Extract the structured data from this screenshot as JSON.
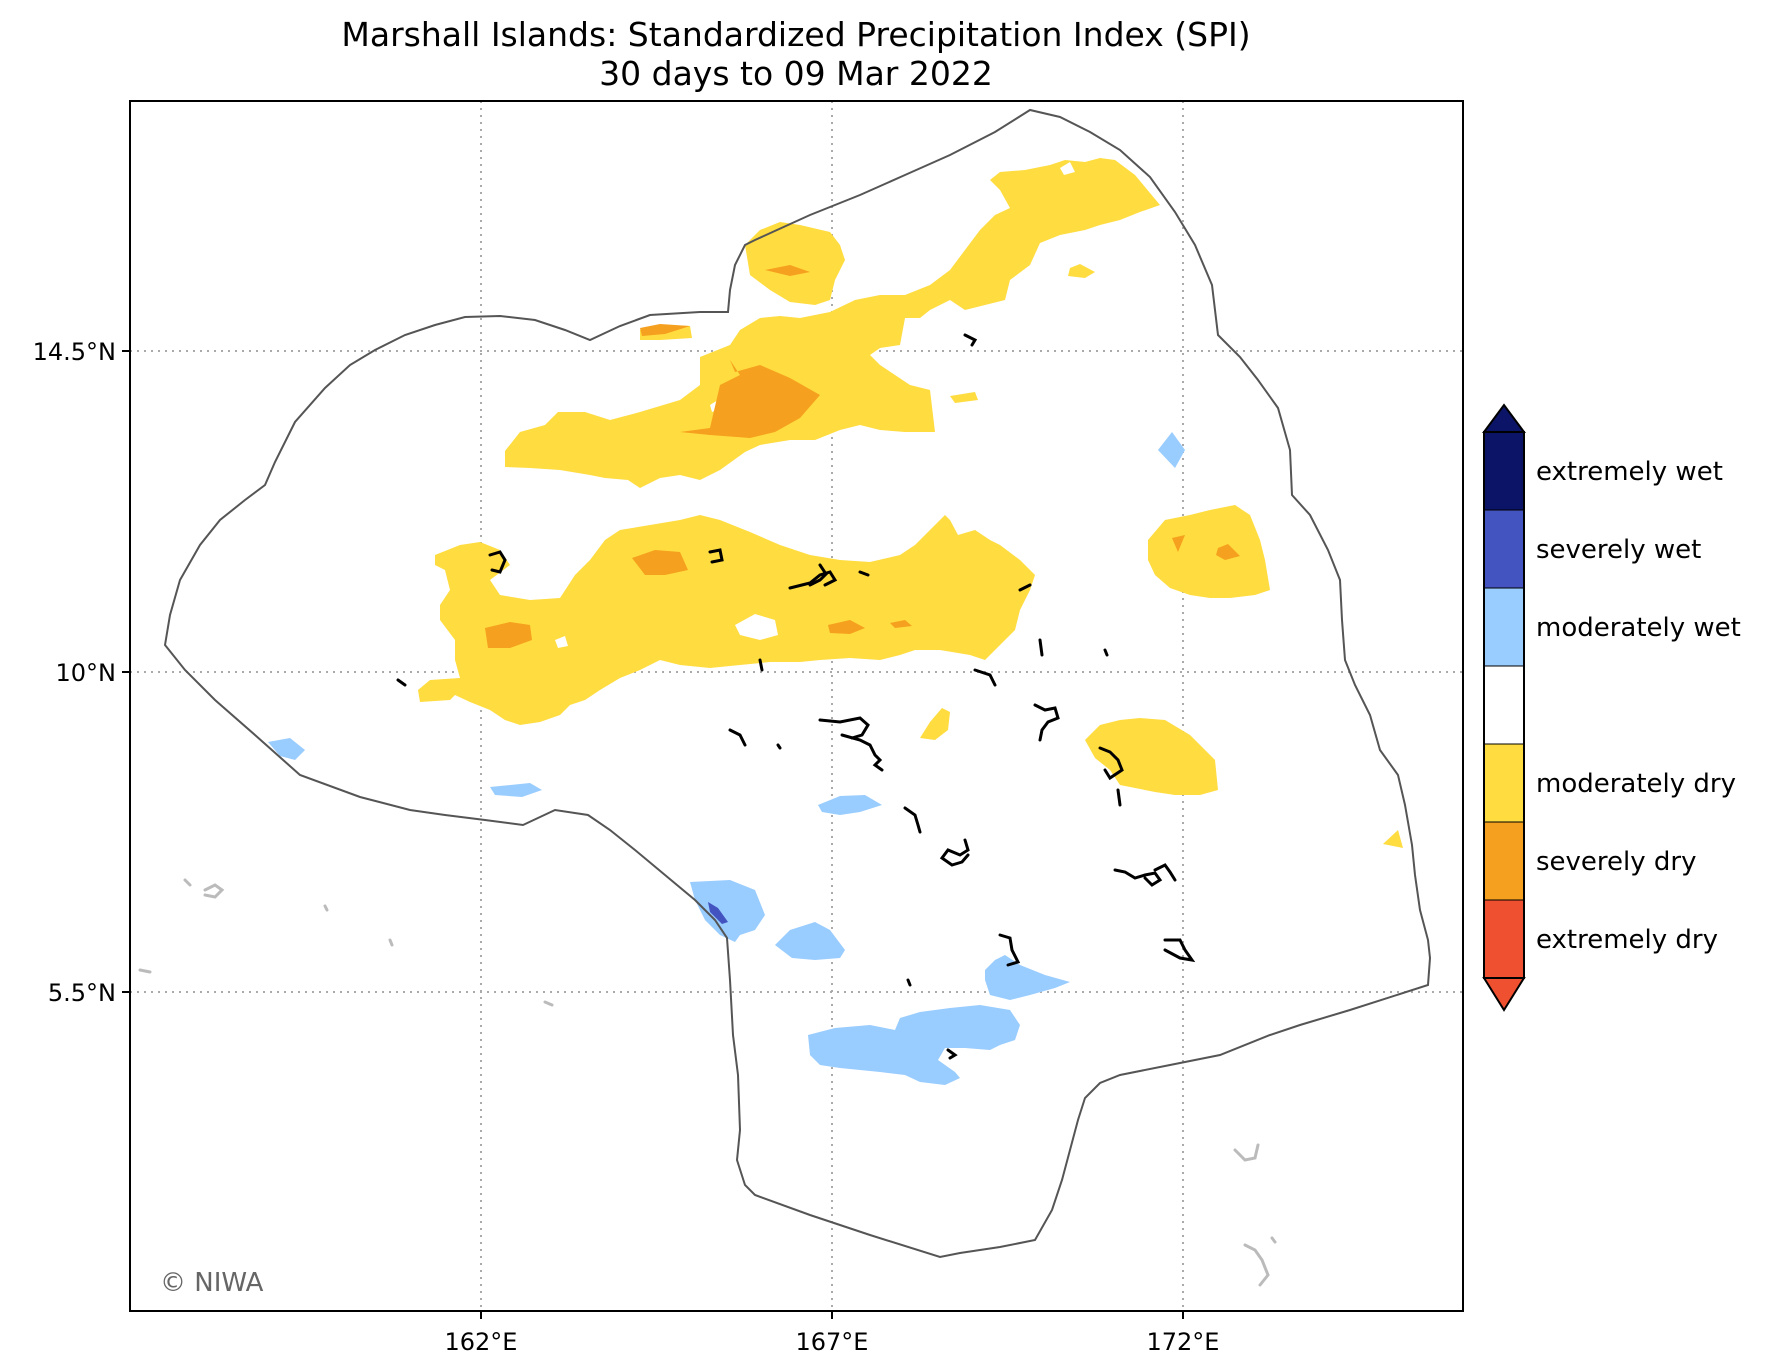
{
  "title": {
    "line1": "Marshall Islands: Standardized Precipitation Index (SPI)",
    "line2": "30 days to 09 Mar 2022"
  },
  "credit": "© NIWA",
  "axes": {
    "x_ticks": [
      "162°E",
      "167°E",
      "172°E"
    ],
    "y_ticks": [
      "14.5°N",
      "10°N",
      "5.5°N"
    ],
    "grid": "dotted"
  },
  "colors": {
    "extremely_wet": "#0b1466",
    "severely_wet": "#4353c0",
    "moderately_wet": "#99ccff",
    "near_normal": "#ffffff",
    "moderately_dry": "#ffdc3f",
    "severely_dry": "#f5a01e",
    "extremely_dry": "#ef5030",
    "eez_line": "#555555",
    "land": "#000000",
    "outside_land": "#bbbbbb"
  },
  "legend": {
    "placement": "right",
    "items": [
      {
        "label": "extremely wet",
        "color": "#0b1466"
      },
      {
        "label": "severely wet",
        "color": "#4353c0"
      },
      {
        "label": "moderately wet",
        "color": "#99ccff"
      },
      {
        "label": "",
        "color": "#ffffff"
      },
      {
        "label": "moderately dry",
        "color": "#ffdc3f"
      },
      {
        "label": "severely dry",
        "color": "#f5a01e"
      },
      {
        "label": "extremely dry",
        "color": "#ef5030"
      }
    ]
  }
}
